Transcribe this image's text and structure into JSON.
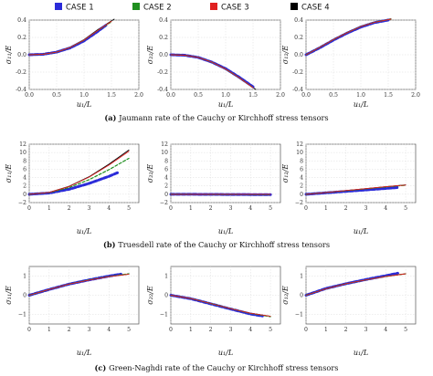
{
  "legend": [
    {
      "label": "CASE 1",
      "color": "#2b2bd9"
    },
    {
      "label": "CASE 2",
      "color": "#1f8f1f"
    },
    {
      "label": "CASE 3",
      "color": "#e02020"
    },
    {
      "label": "CASE 4",
      "color": "#000000"
    }
  ],
  "captions": [
    {
      "tag": "(a)",
      "text": "Jaumann rate of the Cauchy or Kirchhoff stress tensors"
    },
    {
      "tag": "(b)",
      "text": "Truesdell rate of the Cauchy or Kirchhoff stress tensors"
    },
    {
      "tag": "(c)",
      "text": "Green-Naghdi rate of the Cauchy or Kirchhoff stress tensors"
    }
  ],
  "chart_data": [
    {
      "type": "line",
      "row": 0,
      "col": 0,
      "xlabel": "u₁/L",
      "ylabel": "σ₁₁/E",
      "xlim": [
        0,
        2
      ],
      "ylim": [
        -0.4,
        0.4
      ],
      "xticks": [
        "0.0",
        "0.5",
        "1.0",
        "1.5",
        "2.0"
      ],
      "yticks": [
        "0.4",
        "0.2",
        "0.0",
        "-0.2",
        "-0.4"
      ],
      "grid": true,
      "series": [
        {
          "name": "CASE 1",
          "x": [
            0,
            0.25,
            0.5,
            0.75,
            1.0,
            1.25,
            1.4
          ],
          "y": [
            0,
            0.005,
            0.03,
            0.08,
            0.16,
            0.27,
            0.34
          ]
        },
        {
          "name": "CASE 2",
          "x": [
            0,
            0.25,
            0.5,
            0.75,
            1.0,
            1.25,
            1.5
          ],
          "y": [
            0,
            0.005,
            0.03,
            0.085,
            0.17,
            0.28,
            0.38
          ]
        },
        {
          "name": "CASE 3",
          "x": [
            0,
            0.25,
            0.5,
            0.75,
            1.0,
            1.25,
            1.5
          ],
          "y": [
            0,
            0.005,
            0.03,
            0.085,
            0.17,
            0.28,
            0.385
          ]
        },
        {
          "name": "CASE 4",
          "x": [
            0,
            0.25,
            0.5,
            0.75,
            1.0,
            1.25,
            1.55
          ],
          "y": [
            0,
            0.005,
            0.032,
            0.09,
            0.175,
            0.29,
            0.41
          ]
        }
      ]
    },
    {
      "type": "line",
      "row": 0,
      "col": 1,
      "xlabel": "u₁/L",
      "ylabel": "σ₂₂/E",
      "xlim": [
        0,
        2
      ],
      "ylim": [
        -0.4,
        0.4
      ],
      "xticks": [
        "0.0",
        "0.5",
        "1.0",
        "1.5",
        "2.0"
      ],
      "yticks": [
        "0.4",
        "0.2",
        "0.0",
        "-0.2",
        "-0.4"
      ],
      "grid": true,
      "series": [
        {
          "name": "CASE 1",
          "x": [
            0,
            0.25,
            0.5,
            0.75,
            1.0,
            1.25,
            1.5
          ],
          "y": [
            0,
            -0.005,
            -0.03,
            -0.085,
            -0.16,
            -0.26,
            -0.37
          ]
        },
        {
          "name": "CASE 2",
          "x": [
            0,
            0.25,
            0.5,
            0.75,
            1.0,
            1.25,
            1.5
          ],
          "y": [
            0,
            -0.005,
            -0.03,
            -0.085,
            -0.165,
            -0.265,
            -0.38
          ]
        },
        {
          "name": "CASE 3",
          "x": [
            0,
            0.25,
            0.5,
            0.75,
            1.0,
            1.25,
            1.5
          ],
          "y": [
            0,
            -0.005,
            -0.03,
            -0.085,
            -0.165,
            -0.265,
            -0.38
          ]
        },
        {
          "name": "CASE 4",
          "x": [
            0,
            0.25,
            0.5,
            0.75,
            1.0,
            1.25,
            1.55
          ],
          "y": [
            0,
            -0.005,
            -0.032,
            -0.088,
            -0.17,
            -0.27,
            -0.4
          ]
        }
      ]
    },
    {
      "type": "line",
      "row": 0,
      "col": 2,
      "xlabel": "u₁/L",
      "ylabel": "σ₁₂/E",
      "xlim": [
        0,
        2
      ],
      "ylim": [
        -0.4,
        0.4
      ],
      "xticks": [
        "0.0",
        "0.5",
        "1.0",
        "1.5",
        "2.0"
      ],
      "yticks": [
        "0.4",
        "0.2",
        "0.0",
        "-0.2",
        "-0.4"
      ],
      "grid": true,
      "series": [
        {
          "name": "CASE 1",
          "x": [
            0,
            0.25,
            0.5,
            0.75,
            1.0,
            1.25,
            1.5
          ],
          "y": [
            0,
            0.08,
            0.17,
            0.25,
            0.32,
            0.37,
            0.4
          ]
        },
        {
          "name": "CASE 2",
          "x": [
            0,
            0.25,
            0.5,
            0.75,
            1.0,
            1.25,
            1.55
          ],
          "y": [
            0,
            0.085,
            0.175,
            0.255,
            0.325,
            0.375,
            0.41
          ]
        },
        {
          "name": "CASE 3",
          "x": [
            0,
            0.25,
            0.5,
            0.75,
            1.0,
            1.25,
            1.55
          ],
          "y": [
            0,
            0.085,
            0.175,
            0.255,
            0.325,
            0.375,
            0.41
          ]
        },
        {
          "name": "CASE 4",
          "x": [
            0,
            0.25,
            0.5,
            0.75,
            1.0,
            1.25,
            1.55
          ],
          "y": [
            0,
            0.085,
            0.175,
            0.26,
            0.33,
            0.38,
            0.415
          ]
        }
      ]
    },
    {
      "type": "line",
      "row": 1,
      "col": 0,
      "xlabel": "u₁/L",
      "ylabel": "σ₁₁/E",
      "xlim": [
        0,
        5.5
      ],
      "ylim": [
        -2,
        12
      ],
      "xticks": [
        "0",
        "1",
        "2",
        "3",
        "4",
        "5"
      ],
      "yticks": [
        "12",
        "10",
        "8",
        "6",
        "4",
        "2",
        "0",
        "−2"
      ],
      "grid": true,
      "series": [
        {
          "name": "CASE 1",
          "x": [
            0,
            1,
            2,
            3,
            4,
            4.5
          ],
          "y": [
            0,
            0.3,
            1.2,
            2.6,
            4.3,
            5.3
          ]
        },
        {
          "name": "CASE 2",
          "x": [
            0,
            1,
            2,
            3,
            4,
            5
          ],
          "y": [
            0,
            0.4,
            1.6,
            3.5,
            5.9,
            8.6
          ]
        },
        {
          "name": "CASE 3",
          "x": [
            0,
            1,
            2,
            3,
            4,
            5
          ],
          "y": [
            0,
            0.45,
            1.85,
            4.1,
            7.0,
            10.3
          ]
        },
        {
          "name": "CASE 4",
          "x": [
            0,
            1,
            2,
            3,
            4,
            5
          ],
          "y": [
            0,
            0.45,
            1.9,
            4.2,
            7.2,
            10.6
          ]
        }
      ]
    },
    {
      "type": "line",
      "row": 1,
      "col": 1,
      "xlabel": "u₁/L",
      "ylabel": "σ₂₂/E",
      "xlim": [
        0,
        5.5
      ],
      "ylim": [
        -2,
        12
      ],
      "xticks": [
        "0",
        "1",
        "2",
        "3",
        "4",
        "5"
      ],
      "yticks": [
        "12",
        "10",
        "8",
        "6",
        "4",
        "2",
        "0",
        "−2"
      ],
      "grid": true,
      "series": [
        {
          "name": "CASE 1",
          "x": [
            0,
            1,
            2,
            3,
            4,
            5
          ],
          "y": [
            0,
            -0.02,
            -0.04,
            -0.06,
            -0.08,
            -0.1
          ]
        },
        {
          "name": "CASE 2",
          "x": [
            0,
            1,
            2,
            3,
            4,
            5
          ],
          "y": [
            0,
            -0.01,
            -0.03,
            -0.04,
            -0.05,
            -0.06
          ]
        },
        {
          "name": "CASE 3",
          "x": [
            0,
            1,
            2,
            3,
            4,
            5
          ],
          "y": [
            0,
            0,
            0,
            0,
            0,
            0
          ]
        },
        {
          "name": "CASE 4",
          "x": [
            0,
            1,
            2,
            3,
            4,
            5
          ],
          "y": [
            0,
            0,
            0,
            0,
            0,
            0
          ]
        }
      ]
    },
    {
      "type": "line",
      "row": 1,
      "col": 2,
      "xlabel": "u₁/L",
      "ylabel": "σ₁₂/E",
      "xlim": [
        0,
        5.5
      ],
      "ylim": [
        -2,
        12
      ],
      "xticks": [
        "0",
        "1",
        "2",
        "3",
        "4",
        "5"
      ],
      "yticks": [
        "12",
        "10",
        "8",
        "6",
        "4",
        "2",
        "0",
        "−2"
      ],
      "grid": true,
      "series": [
        {
          "name": "CASE 1",
          "x": [
            0,
            1,
            2,
            3,
            4,
            4.6
          ],
          "y": [
            0,
            0.35,
            0.7,
            1.05,
            1.4,
            1.6
          ]
        },
        {
          "name": "CASE 2",
          "x": [
            0,
            1,
            2,
            3,
            4,
            5
          ],
          "y": [
            0,
            0.4,
            0.85,
            1.3,
            1.75,
            2.15
          ]
        },
        {
          "name": "CASE 3",
          "x": [
            0,
            1,
            2,
            3,
            4,
            5
          ],
          "y": [
            0,
            0.42,
            0.88,
            1.34,
            1.8,
            2.2
          ]
        },
        {
          "name": "CASE 4",
          "x": [
            0,
            1,
            2,
            3,
            4,
            5
          ],
          "y": [
            0,
            0.42,
            0.88,
            1.35,
            1.8,
            2.25
          ]
        }
      ]
    },
    {
      "type": "line",
      "row": 2,
      "col": 0,
      "xlabel": "u₁/L",
      "ylabel": "σ₁₁/E",
      "xlim": [
        0,
        5.5
      ],
      "ylim": [
        -1.5,
        1.5
      ],
      "xticks": [
        "0",
        "1",
        "2",
        "3",
        "4",
        "5"
      ],
      "yticks": [
        "1",
        "0",
        "−1"
      ],
      "grid": true,
      "series": [
        {
          "name": "CASE 1",
          "x": [
            0,
            1,
            2,
            3,
            4,
            4.6
          ],
          "y": [
            0,
            0.3,
            0.58,
            0.8,
            1.0,
            1.1
          ]
        },
        {
          "name": "CASE 2",
          "x": [
            0,
            1,
            2,
            3,
            4,
            5
          ],
          "y": [
            0,
            0.3,
            0.58,
            0.8,
            0.98,
            1.12
          ]
        },
        {
          "name": "CASE 3",
          "x": [
            0,
            1,
            2,
            3,
            4,
            5
          ],
          "y": [
            0,
            0.3,
            0.58,
            0.79,
            0.97,
            1.1
          ]
        },
        {
          "name": "CASE 4",
          "x": [
            0,
            1,
            2,
            3,
            4,
            5
          ],
          "y": [
            0,
            0.3,
            0.58,
            0.79,
            0.97,
            1.1
          ]
        }
      ]
    },
    {
      "type": "line",
      "row": 2,
      "col": 1,
      "xlabel": "u₁/L",
      "ylabel": "σ₂₂/E",
      "xlim": [
        0,
        5.5
      ],
      "ylim": [
        -1.5,
        1.5
      ],
      "xticks": [
        "0",
        "1",
        "2",
        "3",
        "4",
        "5"
      ],
      "yticks": [
        "1",
        "0",
        "−1"
      ],
      "grid": true,
      "series": [
        {
          "name": "CASE 1",
          "x": [
            0,
            1,
            2,
            3,
            4,
            4.6
          ],
          "y": [
            0,
            -0.18,
            -0.45,
            -0.72,
            -0.98,
            -1.08
          ]
        },
        {
          "name": "CASE 2",
          "x": [
            0,
            1,
            2,
            3,
            4,
            5
          ],
          "y": [
            0,
            -0.17,
            -0.43,
            -0.7,
            -0.95,
            -1.12
          ]
        },
        {
          "name": "CASE 3",
          "x": [
            0,
            1,
            2,
            3,
            4,
            5
          ],
          "y": [
            0,
            -0.17,
            -0.43,
            -0.7,
            -0.94,
            -1.1
          ]
        },
        {
          "name": "CASE 4",
          "x": [
            0,
            1,
            2,
            3,
            4,
            5
          ],
          "y": [
            0,
            -0.17,
            -0.43,
            -0.7,
            -0.94,
            -1.1
          ]
        }
      ]
    },
    {
      "type": "line",
      "row": 2,
      "col": 2,
      "xlabel": "u₁/L",
      "ylabel": "σ₁₂/E",
      "xlim": [
        0,
        5.5
      ],
      "ylim": [
        -1.5,
        1.5
      ],
      "xticks": [
        "0",
        "1",
        "2",
        "3",
        "4",
        "5"
      ],
      "yticks": [
        "1",
        "0",
        "−1"
      ],
      "grid": true,
      "series": [
        {
          "name": "CASE 1",
          "x": [
            0,
            1,
            2,
            3,
            4,
            4.6
          ],
          "y": [
            0,
            0.35,
            0.6,
            0.82,
            1.02,
            1.15
          ]
        },
        {
          "name": "CASE 2",
          "x": [
            0,
            1,
            2,
            3,
            4,
            5
          ],
          "y": [
            0,
            0.34,
            0.6,
            0.8,
            0.98,
            1.12
          ]
        },
        {
          "name": "CASE 3",
          "x": [
            0,
            1,
            2,
            3,
            4,
            5
          ],
          "y": [
            0,
            0.34,
            0.6,
            0.8,
            0.98,
            1.12
          ]
        },
        {
          "name": "CASE 4",
          "x": [
            0,
            1,
            2,
            3,
            4,
            5
          ],
          "y": [
            0,
            0.34,
            0.6,
            0.8,
            0.98,
            1.12
          ]
        }
      ]
    }
  ]
}
